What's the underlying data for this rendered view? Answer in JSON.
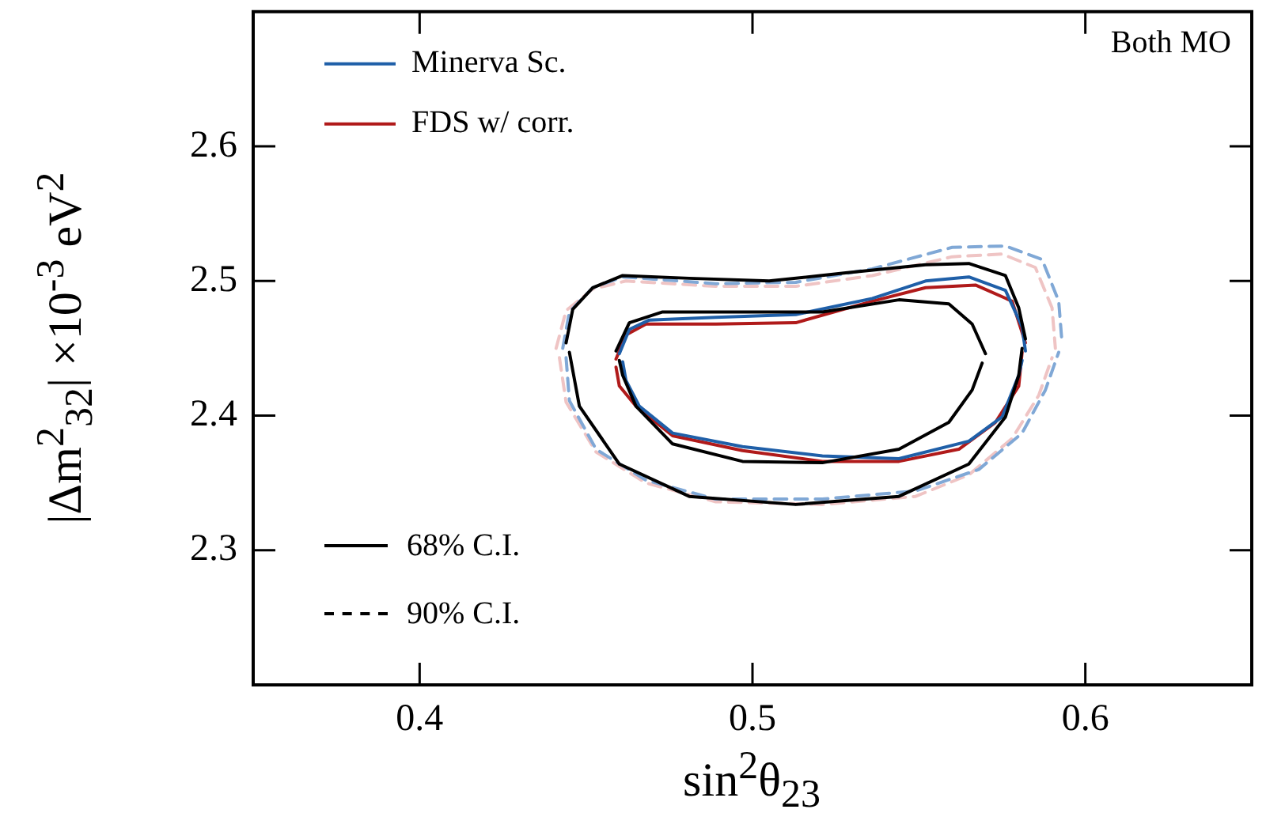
{
  "chart_data": {
    "type": "line",
    "xlabel": "sin$^{2}$θ$_{23}$",
    "ylabel": "|Δm$^{2}$$_{32}$| ×10$^{-3}$ eV$^{2}$",
    "xlim": [
      0.35,
      0.65
    ],
    "xticks": [
      0.4,
      0.5,
      0.6
    ],
    "ylim": [
      2.2,
      2.7
    ],
    "yticks": [
      2.3,
      2.4,
      2.5,
      2.6
    ],
    "grid": false,
    "legend": "top left",
    "marker": "none",
    "annotations": [
      "Both MO",
      "68% C.I.",
      "90% C.I."
    ],
    "series": [
      {
        "color": "#000000",
        "line_style": "solid",
        "x": [
          0.444,
          0.446,
          0.452,
          0.461,
          0.481,
          0.505,
          0.528,
          0.552,
          0.565,
          0.576,
          0.58,
          0.582
        ],
        "values": [
          2.454,
          2.479,
          2.495,
          2.504,
          2.502,
          2.5,
          2.506,
          2.512,
          2.513,
          2.504,
          2.48,
          2.457
        ]
      },
      {
        "color": "#000000",
        "line_style": "solid",
        "x": [
          0.445,
          0.448,
          0.46,
          0.481,
          0.513,
          0.544,
          0.565,
          0.576,
          0.58,
          0.581
        ],
        "values": [
          2.447,
          2.407,
          2.364,
          2.34,
          2.334,
          2.34,
          2.364,
          2.399,
          2.43,
          2.45
        ]
      },
      {
        "color": "#000000",
        "line_style": "solid",
        "x": [
          0.459,
          0.463,
          0.473,
          0.497,
          0.521,
          0.544,
          0.559,
          0.566,
          0.57
        ],
        "values": [
          2.448,
          2.469,
          2.477,
          2.477,
          2.477,
          2.486,
          2.483,
          2.468,
          2.446
        ]
      },
      {
        "color": "#000000",
        "line_style": "solid",
        "x": [
          0.46,
          0.461,
          0.465,
          0.476,
          0.497,
          0.521,
          0.544,
          0.559,
          0.566,
          0.569
        ],
        "values": [
          2.441,
          2.43,
          2.407,
          2.379,
          2.366,
          2.365,
          2.375,
          2.395,
          2.419,
          2.439
        ]
      },
      {
        "name": "Minerva Sc.",
        "color": "#1f5fa8",
        "line_style": "solid",
        "x": [
          0.46,
          0.463,
          0.469,
          0.489,
          0.513,
          0.536,
          0.552,
          0.565,
          0.576,
          0.581,
          0.582
        ],
        "values": [
          2.446,
          2.464,
          2.471,
          2.473,
          2.475,
          2.487,
          2.5,
          2.503,
          2.493,
          2.466,
          2.448
        ]
      },
      {
        "color": "#1f5fa8",
        "line_style": "solid",
        "x": [
          0.461,
          0.462,
          0.466,
          0.476,
          0.497,
          0.521,
          0.544,
          0.565,
          0.575,
          0.58,
          0.581
        ],
        "values": [
          2.44,
          2.426,
          2.407,
          2.387,
          2.377,
          2.37,
          2.368,
          2.381,
          2.399,
          2.43,
          2.441
        ]
      },
      {
        "name": "FDS w/ corr.",
        "color": "#b01a1a",
        "line_style": "solid",
        "x": [
          0.459,
          0.462,
          0.468,
          0.489,
          0.513,
          0.536,
          0.552,
          0.567,
          0.578,
          0.582
        ],
        "values": [
          2.442,
          2.46,
          2.468,
          2.468,
          2.469,
          2.485,
          2.495,
          2.497,
          2.485,
          2.454
        ]
      },
      {
        "color": "#b01a1a",
        "line_style": "solid",
        "x": [
          0.459,
          0.46,
          0.465,
          0.476,
          0.497,
          0.521,
          0.544,
          0.562,
          0.573,
          0.58,
          0.581
        ],
        "values": [
          2.436,
          2.422,
          2.407,
          2.385,
          2.374,
          2.366,
          2.366,
          2.375,
          2.395,
          2.422,
          2.447
        ]
      },
      {
        "color": "#80a8d6",
        "line_style": "dashed",
        "x": [
          0.443,
          0.445,
          0.452,
          0.461,
          0.489,
          0.513,
          0.536,
          0.56,
          0.576,
          0.587,
          0.592,
          0.593
        ],
        "values": [
          2.45,
          2.477,
          2.495,
          2.503,
          2.498,
          2.499,
          2.509,
          2.525,
          2.526,
          2.516,
          2.485,
          2.454
        ]
      },
      {
        "color": "#80a8d6",
        "line_style": "dashed",
        "x": [
          0.444,
          0.445,
          0.453,
          0.468,
          0.489,
          0.521,
          0.549,
          0.568,
          0.581,
          0.588,
          0.592
        ],
        "values": [
          2.443,
          2.411,
          2.375,
          2.352,
          2.338,
          2.338,
          2.344,
          2.36,
          2.387,
          2.419,
          2.447
        ]
      },
      {
        "color": "#efc4c4",
        "line_style": "dashed",
        "x": [
          0.441,
          0.444,
          0.452,
          0.462,
          0.489,
          0.513,
          0.536,
          0.56,
          0.575,
          0.585,
          0.59,
          0.591
        ],
        "values": [
          2.45,
          2.478,
          2.494,
          2.5,
          2.496,
          2.496,
          2.504,
          2.518,
          2.52,
          2.51,
          2.48,
          2.45
        ]
      },
      {
        "color": "#efc4c4",
        "line_style": "dashed",
        "x": [
          0.442,
          0.444,
          0.453,
          0.468,
          0.489,
          0.521,
          0.549,
          0.565,
          0.578,
          0.586,
          0.59
        ],
        "values": [
          2.443,
          2.41,
          2.373,
          2.35,
          2.336,
          2.334,
          2.34,
          2.356,
          2.383,
          2.415,
          2.443
        ]
      }
    ]
  }
}
